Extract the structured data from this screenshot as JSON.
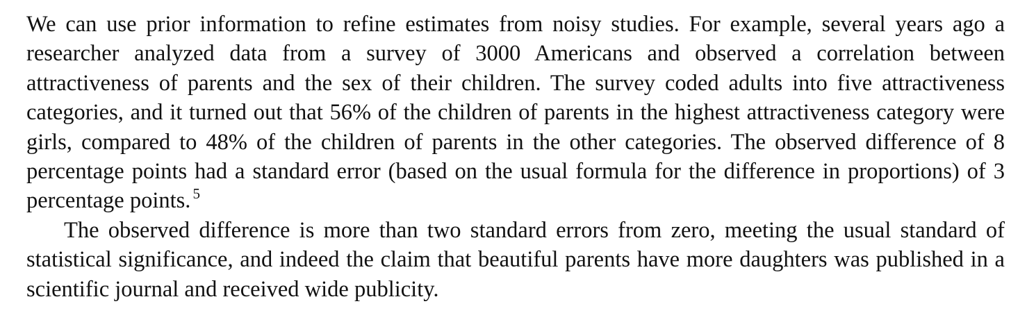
{
  "paragraphs": [
    {
      "text": "We can use prior information to refine estimates from noisy studies. For example, several years ago a researcher analyzed data from a survey of 3000 Americans and observed a correlation between attractiveness of parents and the sex of their children. The survey coded adults into five attractiveness categories, and it turned out that 56% of the children of parents in the highest attractiveness category were girls, compared to 48% of the children of parents in the other categories. The observed difference of 8 percentage points had a standard error (based on the usual formula for the difference in proportions) of 3 percentage points.",
      "footnote_marker": "5"
    },
    {
      "text": "The observed difference is more than two standard errors from zero, meeting the usual standard of statistical significance, and indeed the claim that beautiful parents have more daughters was published in a scientific journal and received wide publicity."
    }
  ]
}
